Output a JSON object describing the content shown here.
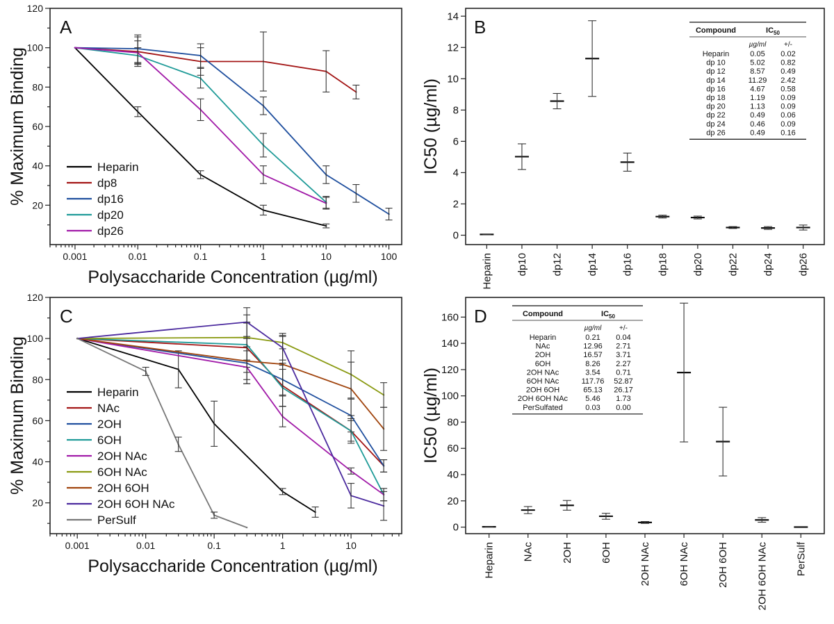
{
  "chart_data": [
    {
      "panel_label": "A",
      "type": "line",
      "xscale": "log",
      "xlim": [
        0.0004,
        160
      ],
      "ylim": [
        0,
        120
      ],
      "xticks": [
        0.001,
        0.01,
        0.1,
        1,
        10,
        100
      ],
      "xtick_labels": [
        "0.001",
        "0.01",
        "0.1",
        "1",
        "10",
        "100"
      ],
      "yticks": [
        20,
        40,
        60,
        80,
        100,
        120
      ],
      "ytick_labels": [
        "20",
        "40",
        "60",
        "80",
        "100",
        "120"
      ],
      "xlabel": "Polysaccharide Concentration (µg/ml)",
      "ylabel": "% Maximum Binding",
      "legend_position": "bottom-left",
      "series": [
        {
          "name": "Heparin",
          "color": "#000000",
          "x": [
            0.001,
            0.01,
            0.1,
            1,
            10
          ],
          "y": [
            100,
            67.5,
            35.5,
            17.5,
            9.5
          ],
          "err": [
            0,
            2.5,
            2,
            2.5,
            1
          ]
        },
        {
          "name": "dp8",
          "color": "#a31515",
          "x": [
            0.001,
            0.01,
            0.1,
            1,
            10,
            30
          ],
          "y": [
            100,
            98,
            93,
            93,
            88,
            77.5
          ],
          "err": [
            0,
            7.5,
            7,
            15,
            10.5,
            3.5
          ]
        },
        {
          "name": "dp16",
          "color": "#1f4f9e",
          "x": [
            0.001,
            0.01,
            0.1,
            1,
            10,
            30,
            100
          ],
          "y": [
            100,
            99.5,
            96,
            70.5,
            35.5,
            26,
            15.5
          ],
          "err": [
            0,
            7,
            6,
            4.5,
            4.5,
            4.5,
            3
          ]
        },
        {
          "name": "dp20",
          "color": "#1f9b98",
          "x": [
            0.001,
            0.01,
            0.1,
            1,
            10
          ],
          "y": [
            100,
            96,
            84.5,
            50.5,
            21.5
          ],
          "err": [
            0,
            4,
            5,
            6,
            3
          ]
        },
        {
          "name": "dp26",
          "color": "#a11aa8",
          "x": [
            0.001,
            0.01,
            0.1,
            1,
            10
          ],
          "y": [
            100,
            97.5,
            68.5,
            35.5,
            21
          ],
          "err": [
            0,
            6,
            5.5,
            4.5,
            3
          ]
        }
      ]
    },
    {
      "panel_label": "B",
      "type": "scatter",
      "categories": [
        "Heparin",
        "dp10",
        "dp12",
        "dp14",
        "dp16",
        "dp18",
        "dp20",
        "dp22",
        "dp24",
        "dp26"
      ],
      "values": [
        0.05,
        5.02,
        8.57,
        11.29,
        4.67,
        1.19,
        1.13,
        0.49,
        0.46,
        0.49
      ],
      "errors": [
        0.02,
        0.82,
        0.49,
        2.42,
        0.58,
        0.09,
        0.09,
        0.06,
        0.09,
        0.16
      ],
      "ylim": [
        -0.6,
        14.5
      ],
      "yticks": [
        0,
        2,
        4,
        6,
        8,
        10,
        12,
        14
      ],
      "ytick_labels": [
        "0",
        "2",
        "4",
        "6",
        "8",
        "10",
        "12",
        "14"
      ],
      "ylabel": "IC50 (µg/ml)",
      "table": {
        "col_compound": "Compound",
        "col_ic50": "IC50",
        "unit": "µg/ml",
        "pm": "+/-",
        "rows": [
          [
            "Heparin",
            "0.05",
            "0.02"
          ],
          [
            "dp 10",
            "5.02",
            "0.82"
          ],
          [
            "dp 12",
            "8.57",
            "0.49"
          ],
          [
            "dp 14",
            "11.29",
            "2.42"
          ],
          [
            "dp 16",
            "4.67",
            "0.58"
          ],
          [
            "dp 18",
            "1.19",
            "0.09"
          ],
          [
            "dp 20",
            "1.13",
            "0.09"
          ],
          [
            "dp 22",
            "0.49",
            "0.06"
          ],
          [
            "dp 24",
            "0.46",
            "0.09"
          ],
          [
            "dp 26",
            "0.49",
            "0.16"
          ]
        ]
      }
    },
    {
      "panel_label": "C",
      "type": "line",
      "xscale": "log",
      "xlim": [
        0.0004,
        55
      ],
      "ylim": [
        5,
        120
      ],
      "xticks": [
        0.001,
        0.01,
        0.1,
        1,
        10
      ],
      "xtick_labels": [
        "0.001",
        "0.01",
        "0.1",
        "1",
        "10"
      ],
      "yticks": [
        20,
        40,
        60,
        80,
        100,
        120
      ],
      "ytick_labels": [
        "20",
        "40",
        "60",
        "80",
        "100",
        "120"
      ],
      "xlabel": "Polysaccharide Concentration (µg/ml)",
      "ylabel": "% Maximum Binding",
      "legend_position": "bottom-left",
      "series": [
        {
          "name": "Heparin",
          "color": "#000000",
          "x": [
            0.001,
            0.03,
            0.1,
            1,
            3
          ],
          "y": [
            100,
            85,
            58.5,
            25.5,
            15.5
          ],
          "err": [
            0,
            9,
            11,
            1.5,
            2.5
          ]
        },
        {
          "name": "NAc",
          "color": "#a31515",
          "x": [
            0.001,
            0.3,
            1,
            10,
            30
          ],
          "y": [
            100,
            95.5,
            77,
            55,
            38
          ],
          "err": [
            0,
            12,
            10,
            5,
            3
          ]
        },
        {
          "name": "2OH",
          "color": "#1f4f9e",
          "x": [
            0.001,
            0.3,
            1,
            10,
            30
          ],
          "y": [
            100,
            88,
            80,
            62.5,
            38
          ],
          "err": [
            0,
            8,
            8,
            8,
            3
          ]
        },
        {
          "name": "6OH",
          "color": "#1f9b98",
          "x": [
            0.001,
            0.3,
            1,
            10,
            30
          ],
          "y": [
            100,
            97,
            76,
            55,
            24
          ],
          "err": [
            0,
            11,
            9,
            6,
            3
          ]
        },
        {
          "name": "2OH NAc",
          "color": "#a11aa8",
          "x": [
            0.001,
            0.3,
            1,
            10,
            30
          ],
          "y": [
            100,
            86,
            62,
            35.5,
            24
          ],
          "err": [
            0,
            8,
            5,
            1.5,
            3
          ]
        },
        {
          "name": "6OH NAc",
          "color": "#8a9a12",
          "x": [
            0.001,
            0.3,
            1,
            10,
            30
          ],
          "y": [
            100,
            100.5,
            98,
            82.5,
            72.5
          ],
          "err": [
            0,
            11,
            3,
            11.5,
            6
          ]
        },
        {
          "name": "2OH 6OH",
          "color": "#a0440d",
          "x": [
            0.001,
            0.3,
            1,
            10,
            30
          ],
          "y": [
            100,
            89,
            87.5,
            75.5,
            56
          ],
          "err": [
            0,
            11,
            15,
            13,
            10.5
          ]
        },
        {
          "name": "2OH 6OH NAc",
          "color": "#4b2a9e",
          "x": [
            0.001,
            0.3,
            1,
            10,
            30
          ],
          "y": [
            100,
            108,
            95.5,
            23.5,
            18.5
          ],
          "err": [
            0,
            7,
            6,
            6,
            7
          ]
        },
        {
          "name": "PerSulf",
          "color": "#777777",
          "x": [
            0.001,
            0.01,
            0.03,
            0.1,
            0.3
          ],
          "y": [
            100,
            84,
            48.5,
            14,
            8
          ],
          "err": [
            0,
            2,
            3.5,
            1.5,
            0
          ]
        }
      ]
    },
    {
      "panel_label": "D",
      "type": "scatter",
      "categories": [
        "Heparin",
        "NAc",
        "2OH",
        "6OH",
        "2OH NAc",
        "6OH NAc",
        "2OH 6OH",
        "2OH 6OH NAc",
        "PerSulf"
      ],
      "values": [
        0.21,
        12.96,
        16.57,
        8.26,
        3.54,
        117.76,
        65.13,
        5.46,
        0.03
      ],
      "errors": [
        0.04,
        2.71,
        3.71,
        2.27,
        0.71,
        52.87,
        26.17,
        1.73,
        0.0
      ],
      "ylim": [
        -5,
        175
      ],
      "yticks": [
        0,
        20,
        40,
        60,
        80,
        100,
        120,
        140,
        160
      ],
      "ytick_labels": [
        "0",
        "20",
        "40",
        "60",
        "80",
        "100",
        "120",
        "140",
        "160"
      ],
      "ylabel": "IC50 (µg/ml)",
      "table": {
        "col_compound": "Compound",
        "col_ic50": "IC50",
        "unit": "µg/ml",
        "pm": "+/-",
        "rows": [
          [
            "Heparin",
            "0.21",
            "0.04"
          ],
          [
            "NAc",
            "12.96",
            "2.71"
          ],
          [
            "2OH",
            "16.57",
            "3.71"
          ],
          [
            "6OH",
            "8.26",
            "2.27"
          ],
          [
            "2OH NAc",
            "3.54",
            "0.71"
          ],
          [
            "6OH NAc",
            "117.76",
            "52.87"
          ],
          [
            "2OH 6OH",
            "65.13",
            "26.17"
          ],
          [
            "2OH 6OH NAc",
            "5.46",
            "1.73"
          ],
          [
            "PerSulfated",
            "0.03",
            "0.00"
          ]
        ]
      }
    }
  ]
}
